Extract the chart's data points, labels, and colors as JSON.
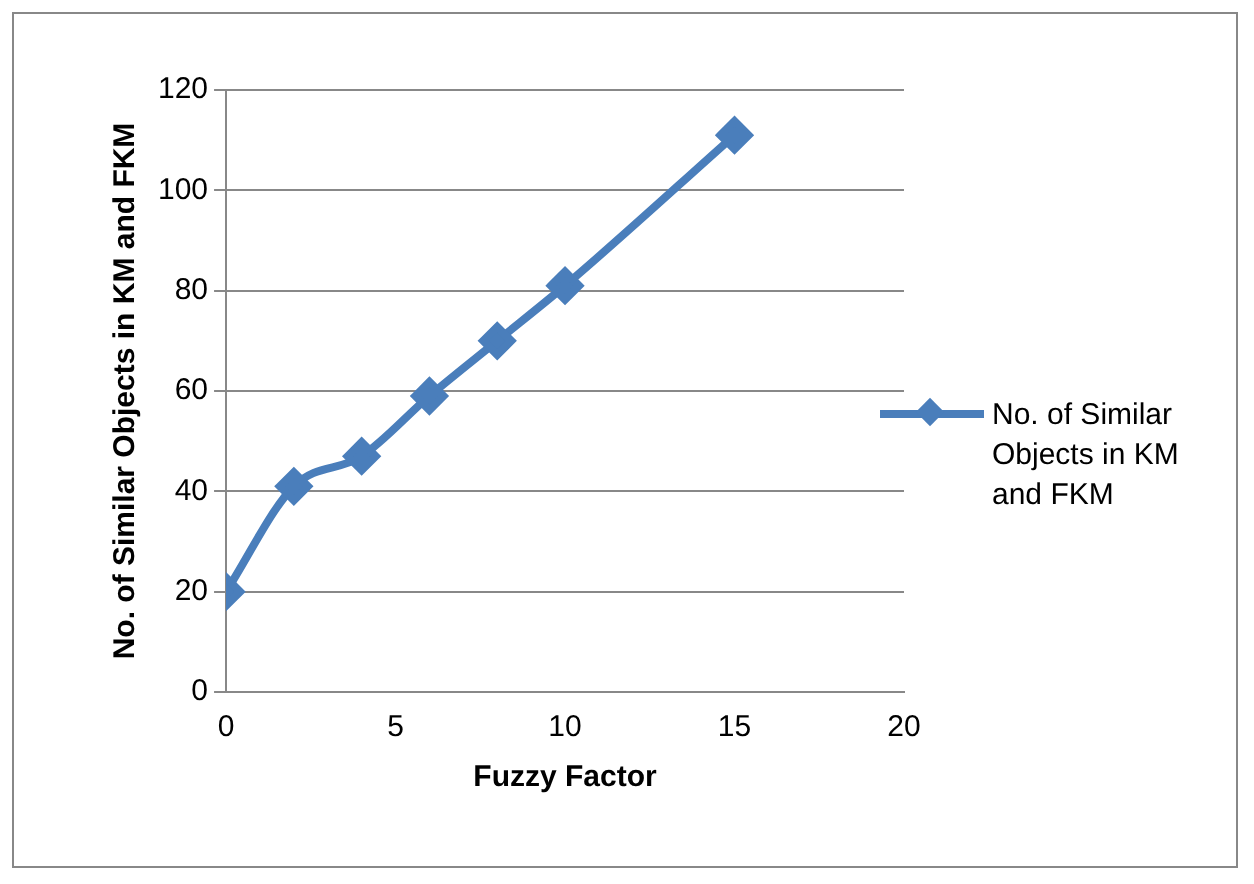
{
  "chart_data": {
    "type": "line",
    "xlabel": "Fuzzy Factor",
    "ylabel": "No. of Similar Objects in KM and FKM",
    "x": [
      0,
      2,
      4,
      6,
      8,
      10,
      15
    ],
    "series": [
      {
        "name": "No. of Similar Objects in KM and FKM",
        "color": "#4a7ebb",
        "values": [
          20,
          41,
          47,
          59,
          70,
          81,
          111
        ]
      }
    ],
    "xlim": [
      0,
      20
    ],
    "xticks": [
      0,
      5,
      10,
      15,
      20
    ],
    "ylim": [
      0,
      120
    ],
    "yticks": [
      0,
      20,
      40,
      60,
      80,
      100,
      120
    ],
    "grid": "y",
    "legend": "right",
    "marker": "diamond",
    "line_style": "solid"
  }
}
